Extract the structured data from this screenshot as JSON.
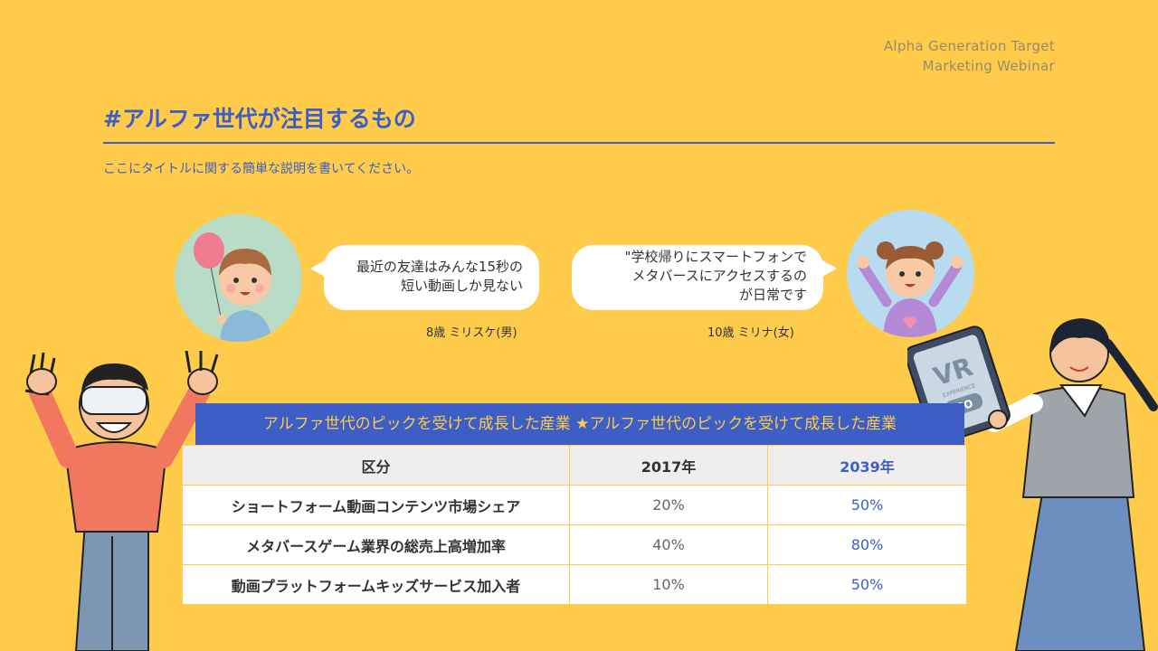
{
  "header": {
    "brand_line1": "Alpha Generation Target",
    "brand_line2": "Marketing Webinar",
    "title": "#アルファ世代が注目するもの",
    "subtitle": "ここにタイトルに関する簡単な説明を書いてください。"
  },
  "quotes": [
    {
      "line1": "最近の友達はみんな15秒の",
      "line2": "短い動画しか見ない",
      "caption": "8歳 ミリスケ(男)"
    },
    {
      "line1": "\"学校帰りにスマートフォンで",
      "line2": "メタバースにアクセスするの",
      "line3": "が日常です",
      "caption": "10歳 ミリナ(女)"
    }
  ],
  "tablet": {
    "text": "VR",
    "small": "EXPERIENCE",
    "button": "GO"
  },
  "table": {
    "heading": "アルファ世代のピックを受けて成長した産業 ★アルファ世代のピックを受けて成長した産業",
    "columns": [
      "区分",
      "2017年",
      "2039年"
    ],
    "rows": [
      [
        "ショートフォーム動画コンテンツ市場シェア",
        "20%",
        "50%"
      ],
      [
        "メタバースゲーム業界の総売上高増加率",
        "40%",
        "80%"
      ],
      [
        "動画プラットフォームキッズサービス加入者",
        "10%",
        "50%"
      ]
    ]
  },
  "colors": {
    "background": "#FECB4B",
    "accent": "#3d5ec4"
  }
}
